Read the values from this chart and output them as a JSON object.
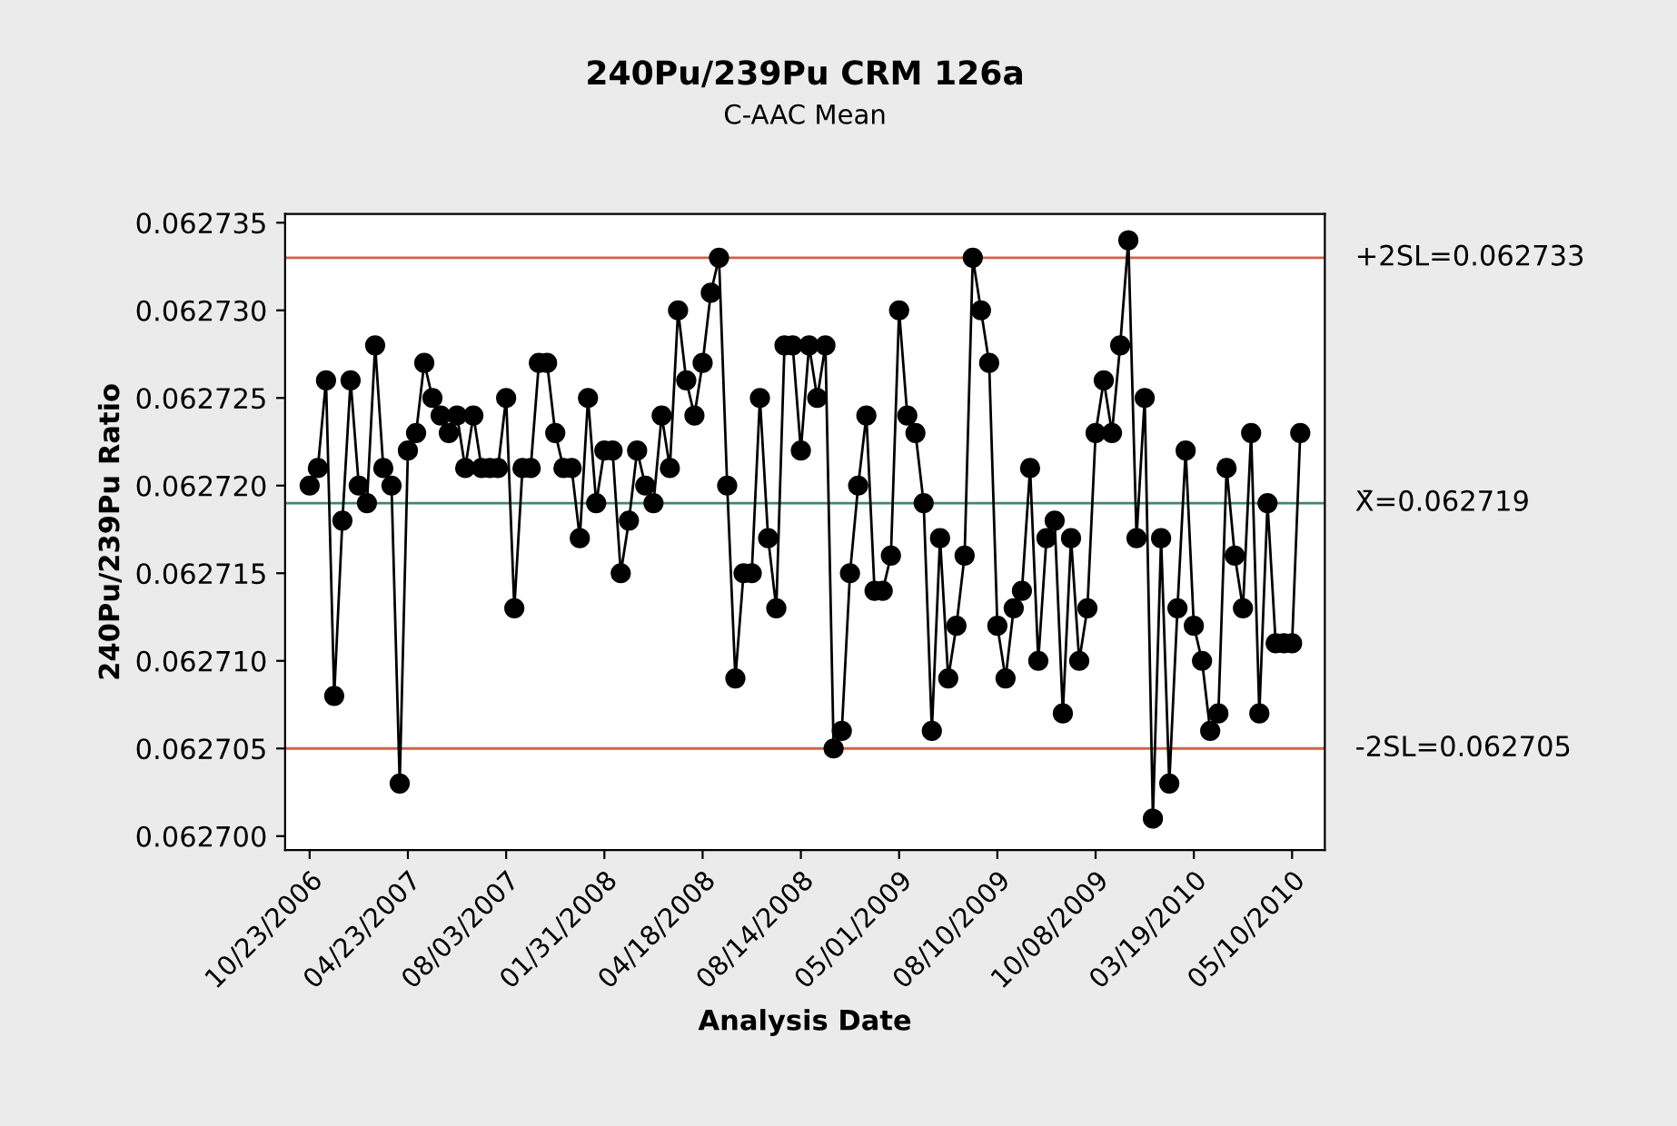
{
  "chart_data": {
    "type": "line",
    "title": "240Pu/239Pu CRM 126a",
    "subtitle": "C-AAC Mean",
    "xlabel": "Analysis Date",
    "ylabel": "240Pu/239Pu Ratio",
    "categories": [
      "10/23/2006",
      null,
      null,
      null,
      null,
      null,
      null,
      null,
      null,
      null,
      null,
      null,
      "04/23/2007",
      null,
      null,
      null,
      null,
      null,
      null,
      null,
      null,
      null,
      null,
      null,
      "08/03/2007",
      null,
      null,
      null,
      null,
      null,
      null,
      null,
      null,
      null,
      null,
      null,
      "01/31/2008",
      null,
      null,
      null,
      null,
      null,
      null,
      null,
      null,
      null,
      null,
      null,
      "04/18/2008",
      null,
      null,
      null,
      null,
      null,
      null,
      null,
      null,
      null,
      null,
      null,
      "08/14/2008",
      null,
      null,
      null,
      null,
      null,
      null,
      null,
      null,
      null,
      null,
      null,
      "05/01/2009",
      null,
      null,
      null,
      null,
      null,
      null,
      null,
      null,
      null,
      null,
      null,
      "08/10/2009",
      null,
      null,
      null,
      null,
      null,
      null,
      null,
      null,
      null,
      null,
      null,
      "10/08/2009",
      null,
      null,
      null,
      null,
      null,
      null,
      null,
      null,
      null,
      null,
      null,
      "03/19/2010",
      null,
      null,
      null,
      null,
      null,
      null,
      null,
      null,
      null,
      null,
      null,
      "05/10/2010",
      null
    ],
    "series": [
      {
        "color": "#000000",
        "values": [
          0.06272,
          0.062721,
          0.062726,
          0.062708,
          0.062718,
          0.062726,
          0.06272,
          0.062719,
          0.062728,
          0.062721,
          0.06272,
          0.062703,
          0.062722,
          0.062723,
          0.062727,
          0.062725,
          0.062724,
          0.062723,
          0.062724,
          0.062721,
          0.062724,
          0.062721,
          0.062721,
          0.062721,
          0.062725,
          0.062713,
          0.062721,
          0.062721,
          0.062727,
          0.062727,
          0.062723,
          0.062721,
          0.062721,
          0.062717,
          0.062725,
          0.062719,
          0.062722,
          0.062722,
          0.062715,
          0.062718,
          0.062722,
          0.06272,
          0.062719,
          0.062724,
          0.062721,
          0.06273,
          0.062726,
          0.062724,
          0.062727,
          0.062731,
          0.062733,
          0.06272,
          0.062709,
          0.062715,
          0.062715,
          0.062725,
          0.062717,
          0.062713,
          0.062728,
          0.062728,
          0.062722,
          0.062728,
          0.062725,
          0.062728,
          0.062705,
          0.062706,
          0.062715,
          0.06272,
          0.062724,
          0.062714,
          0.062714,
          0.062716,
          0.06273,
          0.062724,
          0.062723,
          0.062719,
          0.062706,
          0.062717,
          0.062709,
          0.062712,
          0.062716,
          0.062733,
          0.06273,
          0.062727,
          0.062712,
          0.062709,
          0.062713,
          0.062714,
          0.062721,
          0.06271,
          0.062717,
          0.062718,
          0.062707,
          0.062717,
          0.06271,
          0.062713,
          0.062723,
          0.062726,
          0.062723,
          0.062728,
          0.062734,
          0.062717,
          0.062725,
          0.062701,
          0.062717,
          0.062703,
          0.062713,
          0.062722,
          0.062712,
          0.06271,
          0.062706,
          0.062707,
          0.062721,
          0.062716,
          0.062713,
          0.062723,
          0.062707,
          0.062719,
          0.062711,
          0.062711,
          0.062711,
          0.062723
        ]
      }
    ],
    "marker": "circle",
    "line_style": "solid",
    "ylim": [
      0.0626992,
      0.0627355
    ],
    "yticks": [
      {
        "value": 0.0627,
        "label": "0.062700"
      },
      {
        "value": 0.062705,
        "label": "0.062705"
      },
      {
        "value": 0.06271,
        "label": "0.062710"
      },
      {
        "value": 0.062715,
        "label": "0.062715"
      },
      {
        "value": 0.06272,
        "label": "0.062720"
      },
      {
        "value": 0.062725,
        "label": "0.062725"
      },
      {
        "value": 0.06273,
        "label": "0.062730"
      },
      {
        "value": 0.062735,
        "label": "0.062735"
      }
    ],
    "ref_lines": [
      {
        "axis": "y",
        "value": 0.062733,
        "label": "+2SL=0.062733",
        "color": "#d2604a"
      },
      {
        "axis": "y",
        "value": 0.062719,
        "label": "X̄=0.062719",
        "color": "#3a8a6a"
      },
      {
        "axis": "y",
        "value": 0.062705,
        "label": "-2SL=0.062705",
        "color": "#d2604a"
      }
    ],
    "grid": false,
    "legend": false
  }
}
